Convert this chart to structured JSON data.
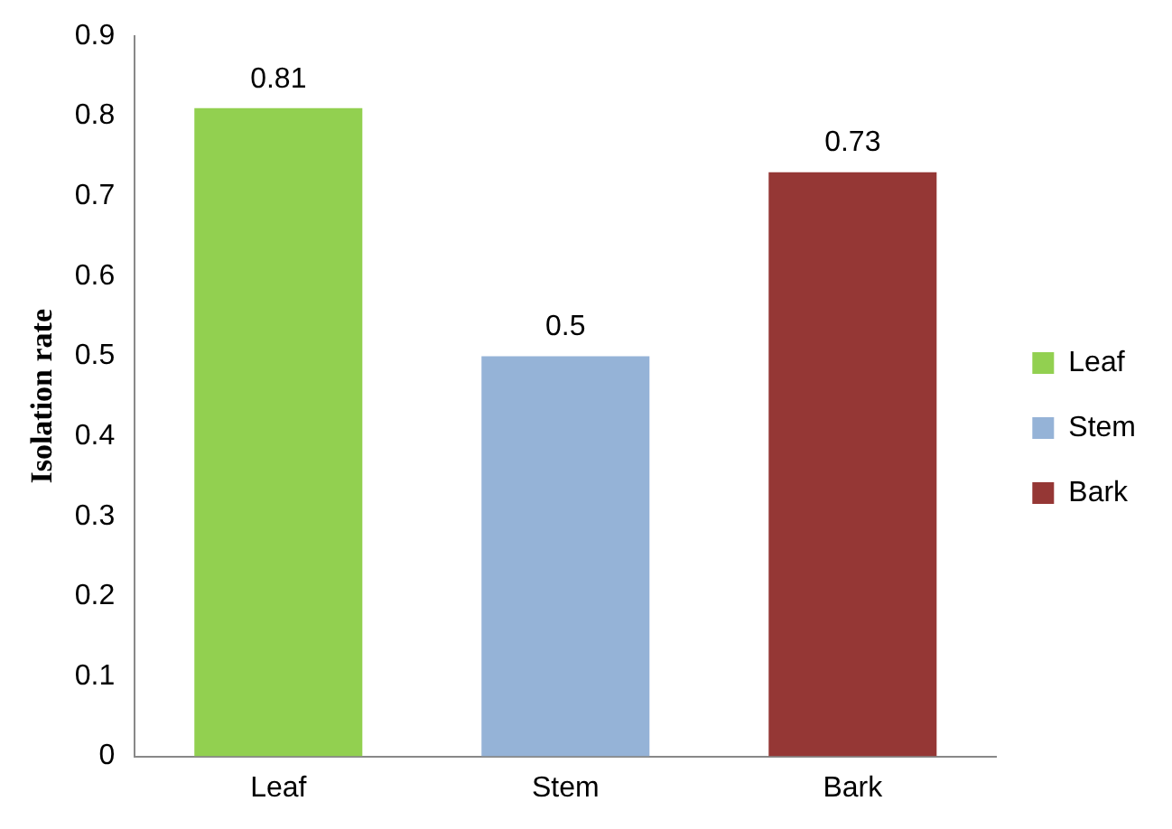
{
  "chart_data": {
    "type": "bar",
    "ylabel": "Isolation rate",
    "categories": [
      "Leaf",
      "Stem",
      "Bark"
    ],
    "series": [
      {
        "name": "Leaf",
        "color": "#92d050",
        "values": [
          0.81,
          null,
          null
        ]
      },
      {
        "name": "Stem",
        "color": "#95b3d7",
        "values": [
          null,
          0.5,
          null
        ]
      },
      {
        "name": "Bark",
        "color": "#953735",
        "values": [
          null,
          null,
          0.73
        ]
      }
    ],
    "ylim": [
      0,
      0.9
    ],
    "yticks": [
      0,
      0.1,
      0.2,
      0.3,
      0.4,
      0.5,
      0.6,
      0.7,
      0.8,
      0.9
    ],
    "grid": false,
    "legend": "right",
    "data_labels": true
  }
}
